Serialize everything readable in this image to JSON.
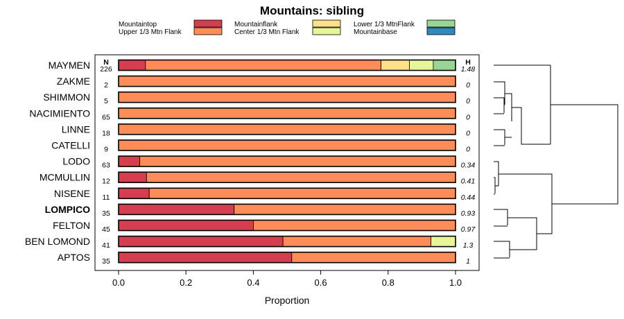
{
  "chart_data": {
    "type": "bar",
    "orientation": "horizontal-stacked",
    "title": "Mountains: sibling",
    "xlabel": "Proportion",
    "xlim": [
      0,
      1
    ],
    "x_ticks": [
      "0.0",
      "0.2",
      "0.4",
      "0.6",
      "0.8",
      "1.0"
    ],
    "n_header": "N",
    "h_header": "H",
    "legend": [
      {
        "name": "Mountaintop",
        "color": "#d53e4f"
      },
      {
        "name": "Upper 1/3 Mtn Flank",
        "color": "#fc8d59"
      },
      {
        "name": "Mountainflank",
        "color": "#fee08b"
      },
      {
        "name": "Center 1/3 Mtn Flank",
        "color": "#e6f598"
      },
      {
        "name": "Lower 1/3 MtnFlank",
        "color": "#99d594"
      },
      {
        "name": "Mountainbase",
        "color": "#3288bd"
      }
    ],
    "categories": [
      "MAYMEN",
      "ZAKME",
      "SHIMMON",
      "NACIMIENTO",
      "LINNE",
      "CATELLI",
      "LODO",
      "MCMULLIN",
      "NISENE",
      "LOMPICO",
      "FELTON",
      "BEN LOMOND",
      "APTOS"
    ],
    "highlight": "LOMPICO",
    "n": [
      "226",
      "2",
      "5",
      "65",
      "18",
      "9",
      "63",
      "12",
      "11",
      "35",
      "45",
      "41",
      "35"
    ],
    "h": [
      "1.48",
      "0",
      "0",
      "0",
      "0",
      "0",
      "0.34",
      "0.41",
      "0.44",
      "0.93",
      "0.97",
      "1.3",
      "1"
    ],
    "series": [
      {
        "name": "Mountaintop",
        "values": [
          0.08,
          0,
          0,
          0,
          0,
          0,
          0.063,
          0.083,
          0.091,
          0.343,
          0.4,
          0.488,
          0.514
        ]
      },
      {
        "name": "Upper 1/3 Mtn Flank",
        "values": [
          0.699,
          1,
          1,
          1,
          1,
          1,
          0.937,
          0.917,
          0.909,
          0.657,
          0.6,
          0.439,
          0.486
        ]
      },
      {
        "name": "Mountainflank",
        "values": [
          0.084,
          0,
          0,
          0,
          0,
          0,
          0,
          0,
          0,
          0,
          0,
          0,
          0
        ]
      },
      {
        "name": "Center 1/3 Mtn Flank",
        "values": [
          0.071,
          0,
          0,
          0,
          0,
          0,
          0,
          0,
          0,
          0,
          0,
          0.073,
          0
        ]
      },
      {
        "name": "Lower 1/3 MtnFlank",
        "values": [
          0.066,
          0,
          0,
          0,
          0,
          0,
          0,
          0,
          0,
          0,
          0,
          0,
          0
        ]
      },
      {
        "name": "Mountainbase",
        "values": [
          0,
          0,
          0,
          0,
          0,
          0,
          0,
          0,
          0,
          0,
          0,
          0,
          0
        ]
      }
    ],
    "dendrogram_leaf_order": [
      "MAYMEN",
      "ZAKME",
      "SHIMMON",
      "NACIMIENTO",
      "LINNE",
      "CATELLI",
      "LODO",
      "MCMULLIN",
      "NISENE",
      "LOMPICO",
      "FELTON",
      "BEN LOMOND",
      "APTOS"
    ]
  }
}
